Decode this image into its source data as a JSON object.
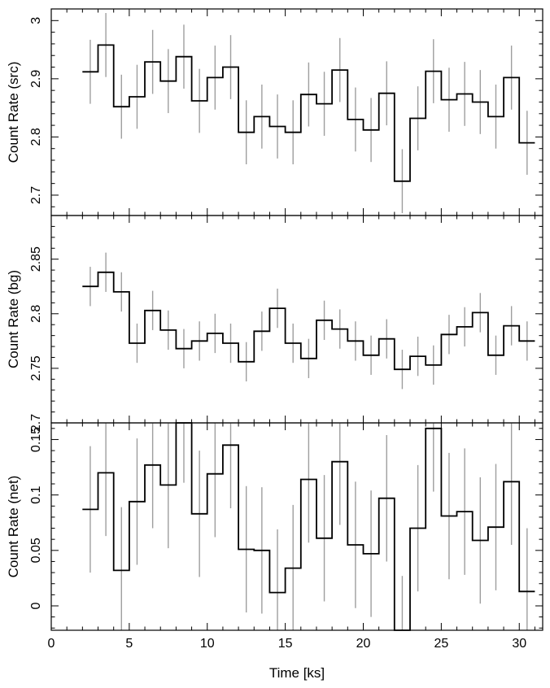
{
  "chart_data": [
    {
      "type": "line",
      "style": "step",
      "ylabel": "Count Rate (src)",
      "xlim": [
        0,
        31.5
      ],
      "ylim": [
        2.665,
        3.02
      ],
      "yticks": [
        2.7,
        2.8,
        2.9,
        3.0
      ],
      "ytick_labels": [
        "2.7",
        "2.8",
        "2.9",
        "3"
      ],
      "x": [
        2.5,
        3.5,
        4.5,
        5.5,
        6.5,
        7.5,
        8.5,
        9.5,
        10.5,
        11.5,
        12.5,
        13.5,
        14.5,
        15.5,
        16.5,
        17.5,
        18.5,
        19.5,
        20.5,
        21.5,
        22.5,
        23.5,
        24.5,
        25.5,
        26.5,
        27.5,
        28.5,
        29.5,
        30.5
      ],
      "y": [
        2.912,
        2.958,
        2.852,
        2.869,
        2.929,
        2.896,
        2.938,
        2.862,
        2.902,
        2.92,
        2.808,
        2.835,
        2.818,
        2.808,
        2.873,
        2.857,
        2.915,
        2.83,
        2.812,
        2.875,
        2.724,
        2.832,
        2.913,
        2.864,
        2.874,
        2.86,
        2.835,
        2.902,
        2.79
      ],
      "err": [
        0.055,
        0.055,
        0.055,
        0.055,
        0.055,
        0.055,
        0.055,
        0.055,
        0.055,
        0.055,
        0.055,
        0.055,
        0.055,
        0.055,
        0.055,
        0.055,
        0.055,
        0.055,
        0.055,
        0.055,
        0.055,
        0.055,
        0.055,
        0.055,
        0.055,
        0.055,
        0.055,
        0.055,
        0.055
      ],
      "bin_width": 1.0,
      "line_color": "#000000",
      "errorbar_color": "#9e9e9e"
    },
    {
      "type": "line",
      "style": "step",
      "ylabel": "Count Rate (bg)",
      "xlim": [
        0,
        31.5
      ],
      "ylim": [
        2.7,
        2.89
      ],
      "yticks": [
        2.7,
        2.75,
        2.8,
        2.85
      ],
      "ytick_labels": [
        "2.7",
        "2.75",
        "2.8",
        "2.85"
      ],
      "x": [
        2.5,
        3.5,
        4.5,
        5.5,
        6.5,
        7.5,
        8.5,
        9.5,
        10.5,
        11.5,
        12.5,
        13.5,
        14.5,
        15.5,
        16.5,
        17.5,
        18.5,
        19.5,
        20.5,
        21.5,
        22.5,
        23.5,
        24.5,
        25.5,
        26.5,
        27.5,
        28.5,
        29.5,
        30.5
      ],
      "y": [
        2.825,
        2.838,
        2.82,
        2.773,
        2.803,
        2.785,
        2.768,
        2.775,
        2.782,
        2.773,
        2.756,
        2.784,
        2.805,
        2.773,
        2.759,
        2.794,
        2.786,
        2.775,
        2.762,
        2.777,
        2.749,
        2.761,
        2.753,
        2.781,
        2.788,
        2.801,
        2.762,
        2.789,
        2.775
      ],
      "err": [
        0.018,
        0.018,
        0.018,
        0.018,
        0.018,
        0.018,
        0.018,
        0.018,
        0.018,
        0.018,
        0.018,
        0.018,
        0.018,
        0.018,
        0.018,
        0.018,
        0.018,
        0.018,
        0.018,
        0.018,
        0.018,
        0.018,
        0.018,
        0.018,
        0.018,
        0.018,
        0.018,
        0.018,
        0.018
      ],
      "bin_width": 1.0,
      "line_color": "#000000",
      "errorbar_color": "#9e9e9e"
    },
    {
      "type": "line",
      "style": "step",
      "xlabel": "Time [ks]",
      "ylabel": "Count Rate (net)",
      "xlim": [
        0,
        31.5
      ],
      "ylim": [
        -0.022,
        0.165
      ],
      "yticks": [
        0,
        0.05,
        0.1,
        0.15
      ],
      "ytick_labels": [
        "0",
        "0.05",
        "0.1",
        "0.15"
      ],
      "xticks": [
        0,
        5,
        10,
        15,
        20,
        25,
        30
      ],
      "xtick_labels": [
        "0",
        "5",
        "10",
        "15",
        "20",
        "25",
        "30"
      ],
      "x": [
        2.5,
        3.5,
        4.5,
        5.5,
        6.5,
        7.5,
        8.5,
        9.5,
        10.5,
        11.5,
        12.5,
        13.5,
        14.5,
        15.5,
        16.5,
        17.5,
        18.5,
        19.5,
        20.5,
        21.5,
        22.5,
        23.5,
        24.5,
        25.5,
        26.5,
        27.5,
        28.5,
        29.5,
        30.5
      ],
      "y": [
        0.087,
        0.12,
        0.032,
        0.094,
        0.127,
        0.109,
        0.168,
        0.083,
        0.119,
        0.145,
        0.051,
        0.05,
        0.012,
        0.034,
        0.114,
        0.061,
        0.13,
        0.055,
        0.047,
        0.097,
        -0.03,
        0.07,
        0.16,
        0.081,
        0.085,
        0.059,
        0.071,
        0.112,
        0.013
      ],
      "err": [
        0.057,
        0.057,
        0.057,
        0.057,
        0.057,
        0.057,
        0.057,
        0.057,
        0.057,
        0.057,
        0.057,
        0.057,
        0.057,
        0.057,
        0.057,
        0.057,
        0.057,
        0.057,
        0.057,
        0.057,
        0.057,
        0.057,
        0.057,
        0.057,
        0.057,
        0.057,
        0.057,
        0.057,
        0.057
      ],
      "bin_width": 1.0,
      "line_color": "#000000",
      "errorbar_color": "#9e9e9e"
    }
  ]
}
